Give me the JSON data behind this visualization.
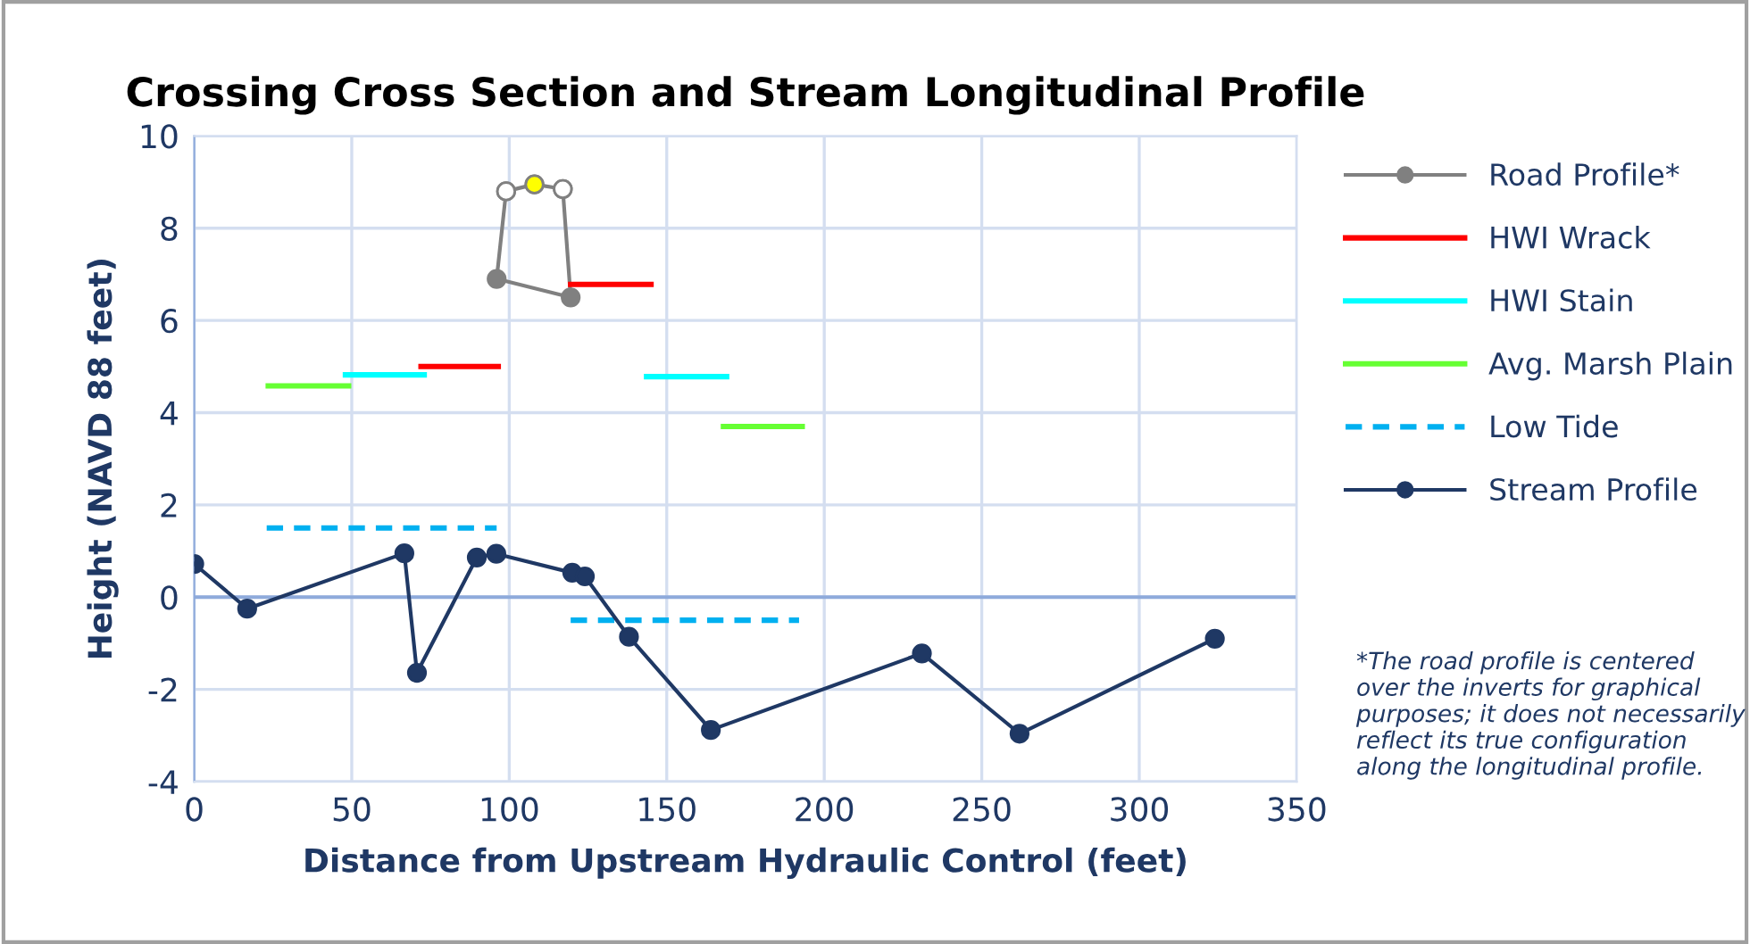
{
  "chart_data": {
    "type": "line",
    "title": "Crossing Cross Section and Stream Longitudinal Profile",
    "xlabel": "Distance from Upstream Hydraulic Control (feet)",
    "ylabel": "Height (NAVD 88 feet)",
    "xlim": [
      0,
      350
    ],
    "xticks": [
      0,
      50,
      100,
      150,
      200,
      250,
      300,
      350
    ],
    "ylim": [
      -4,
      10
    ],
    "yticks": [
      -4,
      -2,
      0,
      2,
      4,
      6,
      8,
      10
    ],
    "grid": true,
    "legend": "right",
    "ref_lines": [
      {
        "axis": "y",
        "value": 0,
        "color": "#8eaadb"
      }
    ],
    "series": [
      {
        "name": "Road Profile*",
        "color": "#808080",
        "marker": "circle",
        "x": [
          96,
          99,
          108,
          117,
          119.5
        ],
        "values": [
          6.9,
          8.8,
          8.95,
          8.85,
          6.5
        ],
        "colors": [
          "#808080",
          "#ffffff",
          "#ffff00",
          "#ffffff",
          "#808080"
        ]
      },
      {
        "color": "#808080",
        "x": [
          96,
          119.5
        ],
        "values": [
          6.9,
          6.5
        ]
      },
      {
        "name": "HWI Wrack",
        "color": "#ff0000",
        "x": [
          72,
          96.5,
          108,
          119.5,
          145
        ],
        "values": [
          5.0,
          5.0,
          null,
          6.78,
          6.78
        ]
      },
      {
        "name": "HWI Stain",
        "color": "#00ffff",
        "x": [
          48,
          73,
          108,
          143.6,
          169
        ],
        "values": [
          4.82,
          4.82,
          null,
          4.78,
          4.78
        ]
      },
      {
        "name": "Avg. Marsh Plain",
        "color": "#66ff33",
        "x": [
          23.5,
          49,
          108,
          168,
          193
        ],
        "values": [
          4.58,
          4.58,
          null,
          3.7,
          3.7
        ]
      },
      {
        "name": "Low Tide",
        "color": "#00b0f0",
        "line_style": "dashed",
        "x": [
          23,
          96,
          108,
          119.5,
          192
        ],
        "values": [
          1.5,
          1.5,
          null,
          -0.5,
          -0.5
        ]
      },
      {
        "name": "Stream Profile",
        "color": "#1f3864",
        "marker": "circle",
        "x": [
          0,
          16.8,
          66.7,
          70.7,
          89.7,
          95.9,
          120,
          124,
          138,
          164,
          231,
          262,
          324
        ],
        "values": [
          0.72,
          -0.25,
          0.95,
          -1.64,
          0.86,
          0.94,
          0.53,
          0.45,
          -0.86,
          -2.88,
          -1.22,
          -2.96,
          -0.9
        ]
      }
    ],
    "annotations": [
      "*The road profile is centered over the inverts for graphical purposes; it does not necessarily reflect its true configuration along the longitudinal profile."
    ]
  }
}
